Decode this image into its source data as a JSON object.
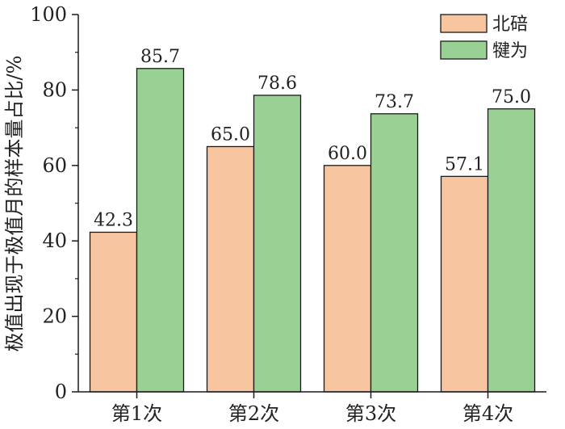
{
  "chart_data": {
    "type": "bar",
    "categories": [
      "第1次",
      "第2次",
      "第3次",
      "第4次"
    ],
    "series": [
      {
        "name": "北碚",
        "values": [
          42.3,
          65.0,
          60.0,
          57.1
        ],
        "labels": [
          "42.3",
          "65.0",
          "60.0",
          "57.1"
        ],
        "color": "#f7c59f"
      },
      {
        "name": "犍为",
        "values": [
          85.7,
          78.6,
          73.7,
          75.0
        ],
        "labels": [
          "85.7",
          "78.6",
          "73.7",
          "75.0"
        ],
        "color": "#99d194"
      }
    ],
    "title": "",
    "xlabel": "",
    "ylabel": "极值出现于极值月的样本量占比/%",
    "ylim": [
      0,
      100
    ],
    "yticks": [
      "0",
      "20",
      "40",
      "60",
      "80",
      "100"
    ],
    "grid": false,
    "legend_position": "top-right"
  }
}
